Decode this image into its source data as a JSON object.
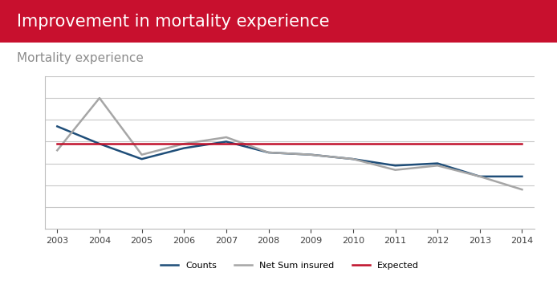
{
  "chart_data": {
    "type": "line",
    "title": "Improvement in mortality experience",
    "subtitle": "Mortality experience",
    "categories": [
      "2003",
      "2004",
      "2005",
      "2006",
      "2007",
      "2008",
      "2009",
      "2010",
      "2011",
      "2012",
      "2013",
      "2014"
    ],
    "series": [
      {
        "name": "Counts",
        "color": "#1f4e79",
        "values": [
          4.7,
          3.9,
          3.2,
          3.7,
          4.0,
          3.5,
          3.4,
          3.2,
          2.9,
          3.0,
          2.4,
          2.4
        ]
      },
      {
        "name": "Net Sum insured",
        "color": "#a6a6a6",
        "values": [
          3.6,
          6.0,
          3.4,
          3.9,
          4.2,
          3.5,
          3.4,
          3.2,
          2.7,
          2.9,
          2.4,
          1.8
        ]
      },
      {
        "name": "Expected",
        "color": "#c0102a",
        "values": [
          3.9,
          3.9,
          3.9,
          3.9,
          3.9,
          3.9,
          3.9,
          3.9,
          3.9,
          3.9,
          3.9,
          3.9
        ]
      }
    ],
    "ylim": [
      0,
      7
    ],
    "yticks": [
      0,
      1,
      2,
      3,
      4,
      5,
      6,
      7
    ],
    "grid": true,
    "legend": "lower center",
    "tick_labels": "x"
  }
}
